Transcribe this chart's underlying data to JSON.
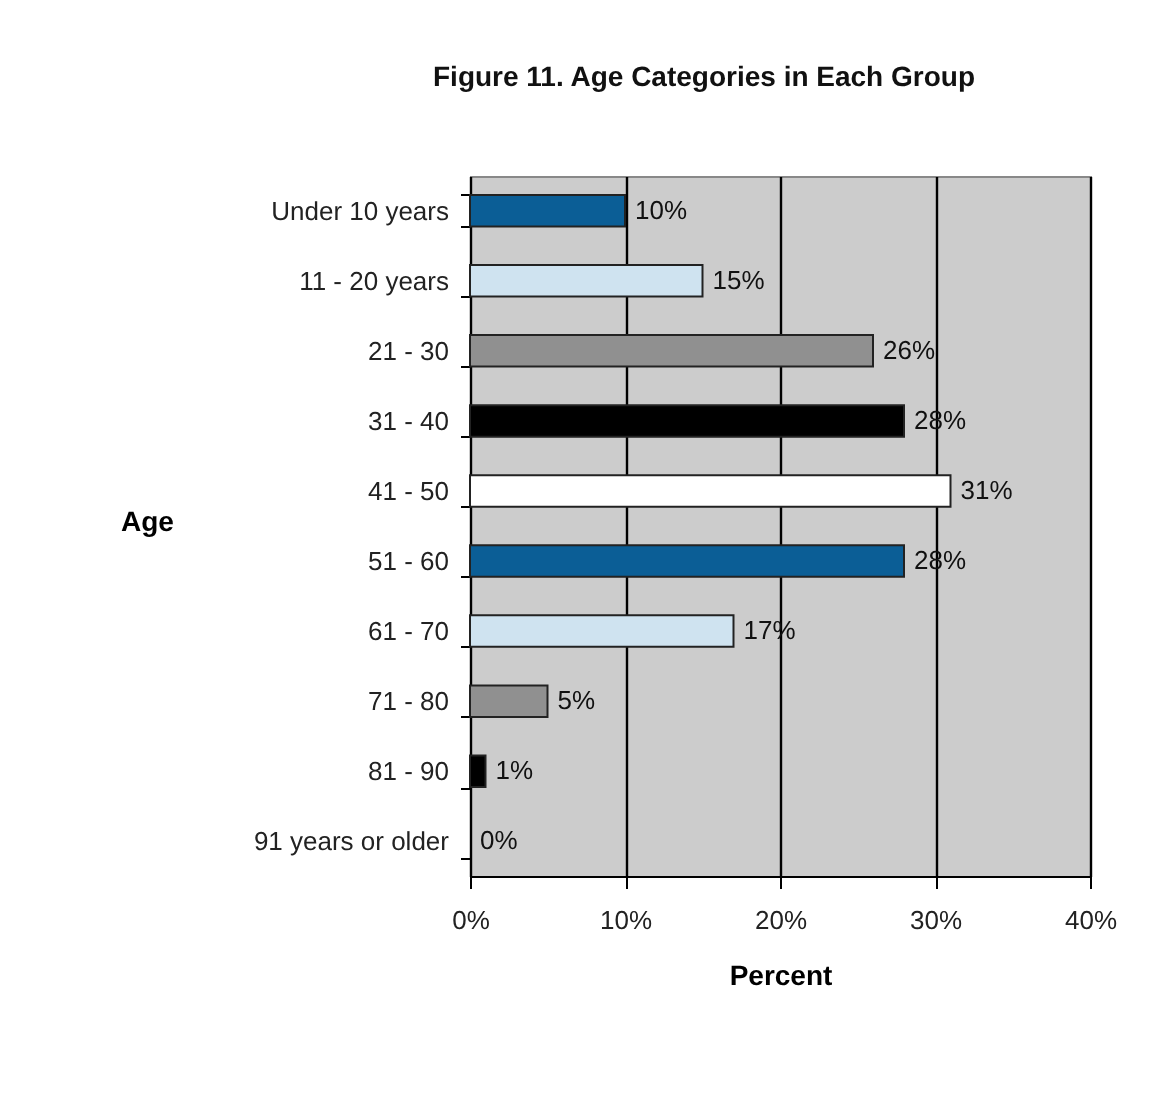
{
  "chart_data": {
    "type": "bar",
    "orientation": "horizontal",
    "title": "Figure 11.  Age Categories in Each Group",
    "xlabel": "Percent",
    "ylabel": "Age",
    "categories": [
      "Under 10 years",
      "11 - 20 years",
      "21 - 30",
      "31 - 40",
      "41 - 50",
      "51 - 60",
      "61 - 70",
      "71 - 80",
      "81 - 90",
      "91 years or older"
    ],
    "values": [
      10,
      15,
      26,
      28,
      31,
      28,
      17,
      5,
      1,
      0
    ],
    "value_labels": [
      "10%",
      "15%",
      "26%",
      "28%",
      "31%",
      "28%",
      "17%",
      "5%",
      "1%",
      "0%"
    ],
    "colors": [
      "#0b5e96",
      "#cfe3f0",
      "#909090",
      "#000000",
      "#ffffff",
      "#0b5e96",
      "#cfe3f0",
      "#909090",
      "#000000",
      "#ffffff"
    ],
    "xlim": [
      0,
      40
    ],
    "xticks": [
      {
        "value": 0,
        "label": "0%"
      },
      {
        "value": 10,
        "label": "10%"
      },
      {
        "value": 20,
        "label": "20%"
      },
      {
        "value": 30,
        "label": "30%"
      },
      {
        "value": 40,
        "label": "40%"
      }
    ],
    "grid": "x"
  }
}
